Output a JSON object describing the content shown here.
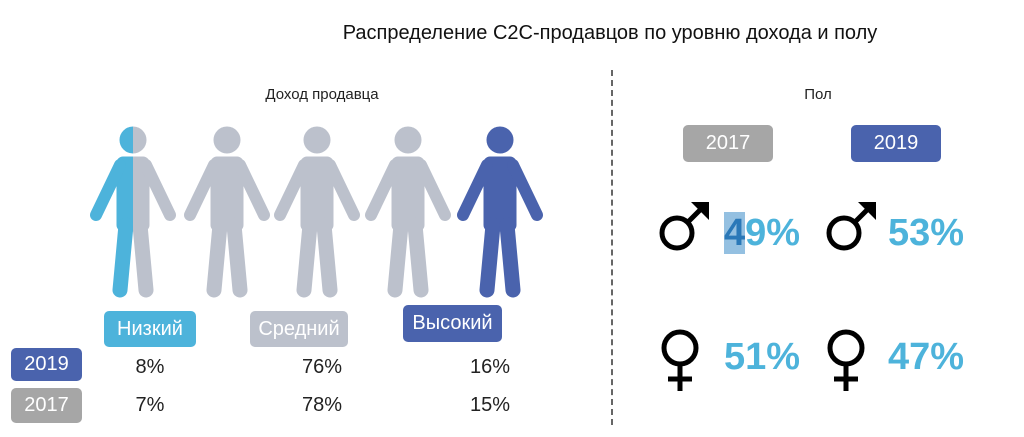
{
  "title": "Распределение С2С-продавцов по уровню дохода и полу",
  "income": {
    "heading": "Доход продавца",
    "levels": [
      {
        "label": "Низкий",
        "color": "#4db3db",
        "v2019": "8%",
        "v2017": "7%"
      },
      {
        "label": "Средний",
        "color": "#bcc1cc",
        "v2019": "76%",
        "v2017": "78%"
      },
      {
        "label": "Высокий",
        "color": "#4a63ad",
        "v2019": "16%",
        "v2017": "15%"
      }
    ],
    "years": [
      {
        "label": "2019",
        "color": "#4a63ad"
      },
      {
        "label": "2017",
        "color": "#a6a6a6"
      }
    ]
  },
  "gender": {
    "heading": "Пол",
    "years": [
      {
        "label": "2017",
        "color": "#a6a6a6",
        "male": "49%",
        "female": "51%"
      },
      {
        "label": "2019",
        "color": "#4a63ad",
        "male": "53%",
        "female": "47%"
      }
    ]
  },
  "colors": {
    "light_blue": "#4db3db",
    "gray": "#bcc1cc",
    "dark_blue": "#4a63ad"
  }
}
